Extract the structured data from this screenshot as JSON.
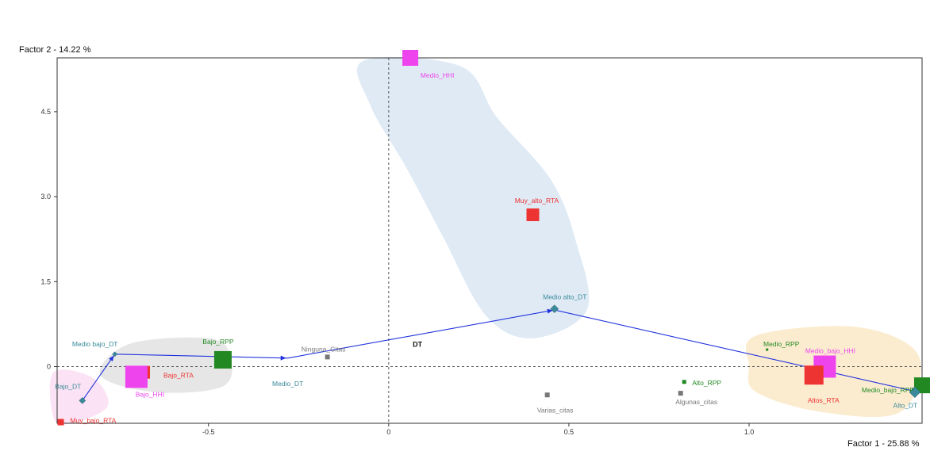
{
  "chart_data": {
    "type": "scatter",
    "title": "",
    "xlabel": "Factor 1  -  25.88 %",
    "ylabel": "Factor 2  -  14.22 %",
    "xlim": [
      -0.92,
      1.48
    ],
    "ylim": [
      -1.0,
      5.45
    ],
    "xticks": [
      -0.5,
      0,
      0.5,
      1.0
    ],
    "xtick_labels": [
      "-0.5",
      "0",
      "0.5",
      "1.0"
    ],
    "yticks": [
      0,
      1.5,
      3.0,
      4.5
    ],
    "ytick_labels": [
      "0",
      "1.5",
      "3.0",
      "4.5"
    ],
    "grid": false,
    "zero_lines": "dashed",
    "colors": {
      "HHI": "#ee44ee",
      "RTA": "#ee3333",
      "RPP": "#228822",
      "DT": "#3a8a9a",
      "citas": "#777777",
      "path": "#2233dd"
    },
    "regions": [
      {
        "color": "#dce8f4",
        "points": [
          [
            -0.07,
            5.4
          ],
          [
            0.2,
            5.3
          ],
          [
            0.3,
            4.4
          ],
          [
            0.45,
            3.3
          ],
          [
            0.52,
            2.2
          ],
          [
            0.55,
            1.0
          ],
          [
            0.4,
            0.5
          ],
          [
            0.27,
            0.9
          ],
          [
            0.15,
            2.3
          ],
          [
            0.05,
            3.5
          ],
          [
            -0.05,
            4.6
          ]
        ]
      },
      {
        "color": "#e3e3e3",
        "points": [
          [
            -0.72,
            0.4
          ],
          [
            -0.5,
            0.5
          ],
          [
            -0.44,
            0.2
          ],
          [
            -0.46,
            -0.35
          ],
          [
            -0.65,
            -0.45
          ],
          [
            -0.8,
            -0.15
          ]
        ]
      },
      {
        "color": "#fbeacb",
        "points": [
          [
            1.02,
            0.55
          ],
          [
            1.3,
            0.7
          ],
          [
            1.47,
            0.2
          ],
          [
            1.42,
            -0.8
          ],
          [
            1.2,
            -0.8
          ],
          [
            1.02,
            -0.45
          ],
          [
            1.0,
            0.0
          ]
        ]
      },
      {
        "color": "#fbe0f4",
        "points": [
          [
            -0.93,
            -0.1
          ],
          [
            -0.82,
            -0.2
          ],
          [
            -0.78,
            -0.7
          ],
          [
            -0.88,
            -1.0
          ],
          [
            -0.93,
            -0.9
          ]
        ]
      }
    ],
    "path": {
      "name": "DT",
      "color": "#2233dd",
      "points": [
        [
          -0.85,
          -0.6
        ],
        [
          -0.76,
          0.22
        ],
        [
          -0.28,
          0.15
        ],
        [
          0.46,
          1.0
        ],
        [
          1.47,
          -0.45
        ]
      ]
    },
    "points": [
      {
        "label": "Medio_HHI",
        "x": 0.06,
        "y": 5.45,
        "group": "HHI",
        "shape": "square",
        "size": 20
      },
      {
        "label": "Muy_alto_RTA",
        "x": 0.4,
        "y": 2.68,
        "group": "RTA",
        "shape": "square",
        "size": 16
      },
      {
        "label": "Medio alto_DT",
        "x": 0.46,
        "y": 1.02,
        "group": "DT",
        "shape": "diamond",
        "size": 10
      },
      {
        "label": "Medio bajo_DT",
        "x": -0.76,
        "y": 0.22,
        "group": "DT",
        "shape": "diamond",
        "size": 6
      },
      {
        "label": "Bajo_RPP",
        "x": -0.46,
        "y": 0.12,
        "group": "RPP",
        "shape": "square",
        "size": 22
      },
      {
        "label": "Ninguna_Citas",
        "x": -0.17,
        "y": 0.17,
        "group": "citas",
        "shape": "square",
        "size": 6
      },
      {
        "label": "Bajo_RTA",
        "x": -0.68,
        "y": -0.1,
        "group": "RTA",
        "shape": "square",
        "size": 16
      },
      {
        "label": "Bajo_HHI",
        "x": -0.7,
        "y": -0.18,
        "group": "HHI",
        "shape": "square",
        "size": 28
      },
      {
        "label": "Bajo_DT",
        "x": -0.85,
        "y": -0.6,
        "group": "DT",
        "shape": "diamond",
        "size": 8
      },
      {
        "label": "Medio_DT",
        "x": -0.28,
        "y": -0.15,
        "group": "DT",
        "shape": "none",
        "size": 0
      },
      {
        "label": "Muy_bajo_RTA",
        "x": -0.91,
        "y": -0.98,
        "group": "RTA",
        "shape": "square",
        "size": 8
      },
      {
        "label": "Varias_citas",
        "x": 0.44,
        "y": -0.5,
        "group": "citas",
        "shape": "square",
        "size": 6
      },
      {
        "label": "Alto_RPP",
        "x": 0.82,
        "y": -0.27,
        "group": "RPP",
        "shape": "square",
        "size": 5
      },
      {
        "label": "Algunas_citas",
        "x": 0.81,
        "y": -0.47,
        "group": "citas",
        "shape": "square",
        "size": 6
      },
      {
        "label": "Medio_RPP",
        "x": 1.05,
        "y": 0.3,
        "group": "RPP",
        "shape": "square",
        "size": 3
      },
      {
        "label": "Medio_bajo_HHI",
        "x": 1.21,
        "y": 0.0,
        "group": "HHI",
        "shape": "square",
        "size": 28
      },
      {
        "label": "Altos_RTA",
        "x": 1.18,
        "y": -0.15,
        "group": "RTA",
        "shape": "square",
        "size": 24
      },
      {
        "label": "Medio_bajo_RPP",
        "x": 1.48,
        "y": -0.33,
        "group": "RPP",
        "shape": "square",
        "size": 20
      },
      {
        "label": "Alto_DT",
        "x": 1.46,
        "y": -0.45,
        "group": "DT",
        "shape": "diamond",
        "size": 14
      }
    ],
    "annotations": [
      {
        "text": "DT",
        "x": 0.08,
        "y": 0.35,
        "bold": true
      }
    ]
  }
}
